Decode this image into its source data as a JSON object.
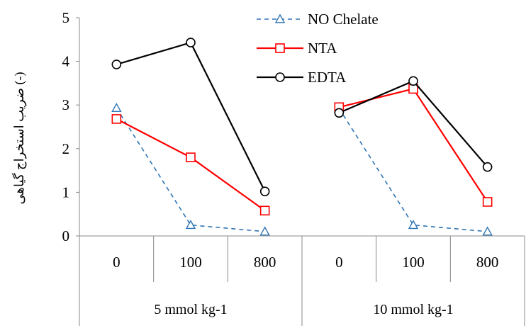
{
  "chart_data": {
    "type": "line",
    "title": "",
    "ylabel": "ضریب استخراج گیاهی (-)",
    "xlabel": "",
    "ylim": [
      0,
      5
    ],
    "yticks": [
      0,
      1,
      2,
      3,
      4,
      5
    ],
    "grid": false,
    "legend_position": "top-center",
    "groups": [
      {
        "label": "5 mmol kg-1",
        "categories": [
          "0",
          "100",
          "800"
        ]
      },
      {
        "label": "10 mmol kg-1",
        "categories": [
          "0",
          "100",
          "800"
        ]
      }
    ],
    "series": [
      {
        "name": "NO Chelate",
        "color": "#2e75b6",
        "dash": "dashed",
        "marker": "triangle",
        "values": [
          [
            2.93,
            0.25,
            0.1
          ],
          [
            2.92,
            0.25,
            0.1
          ]
        ]
      },
      {
        "name": "NTA",
        "color": "#ff0000",
        "dash": "solid",
        "marker": "square",
        "values": [
          [
            2.68,
            1.8,
            0.58
          ],
          [
            2.95,
            3.37,
            0.78
          ]
        ]
      },
      {
        "name": "EDTA",
        "color": "#000000",
        "dash": "solid",
        "marker": "circle",
        "values": [
          [
            3.93,
            4.43,
            1.02
          ],
          [
            2.82,
            3.55,
            1.58
          ]
        ]
      }
    ]
  }
}
